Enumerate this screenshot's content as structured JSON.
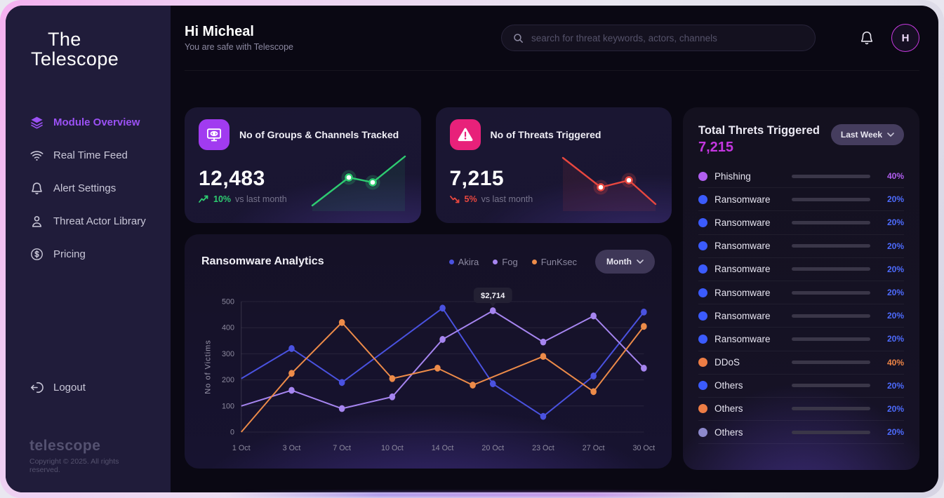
{
  "colors": {
    "accent_purple": "#9b51f5",
    "magenta_total": "#c436e0",
    "green": "#2ecc71",
    "red": "#e8473f",
    "bar_track": "#3a3648"
  },
  "sidebar": {
    "logo_line1": "The",
    "logo_line2": "Telescope",
    "items": [
      {
        "label": "Module Overview",
        "icon": "layers",
        "active": true
      },
      {
        "label": "Real Time Feed",
        "icon": "wifi",
        "active": false
      },
      {
        "label": "Alert Settings",
        "icon": "bell",
        "active": false
      },
      {
        "label": "Threat Actor Library",
        "icon": "user",
        "active": false
      },
      {
        "label": "Pricing",
        "icon": "dollar",
        "active": false
      }
    ],
    "logout_label": "Logout",
    "footer_brand": "telescope",
    "footer_copyright": "Copyright © 2025. All rights reserved."
  },
  "header": {
    "greeting": "Hi Micheal",
    "subtitle": "You are safe with Telescope",
    "search_placeholder": "search for threat keywords, actors, channels",
    "avatar_initial": "H"
  },
  "stat_cards": [
    {
      "title": "No of Groups & Channels Tracked",
      "value": "12,483",
      "delta": "10%",
      "delta_direction": "up",
      "delta_suffix": "vs last month",
      "icon": "monitor-eye",
      "icon_bg": "#a13bf0",
      "trend_color": "#2ecc71",
      "sparkline": {
        "points": [
          [
            4,
            76
          ],
          [
            56,
            36
          ],
          [
            90,
            43
          ],
          [
            136,
            6
          ]
        ],
        "dots": [
          [
            56,
            36
          ],
          [
            90,
            43
          ]
        ]
      }
    },
    {
      "title": "No of Threats Triggered",
      "value": "7,215",
      "delta": "5%",
      "delta_direction": "down",
      "delta_suffix": "vs last month",
      "icon": "alert-triangle",
      "icon_bg": "#e8217a",
      "trend_color": "#e8473f",
      "sparkline": {
        "points": [
          [
            4,
            8
          ],
          [
            58,
            50
          ],
          [
            98,
            40
          ],
          [
            136,
            74
          ]
        ],
        "dots": [
          [
            58,
            50
          ],
          [
            98,
            40
          ]
        ]
      }
    }
  ],
  "threat_panel": {
    "title": "Total Threts Triggered",
    "total": "7,215",
    "filter_label": "Last Week",
    "rows": [
      {
        "label": "Phishing",
        "color": "#b15ef0",
        "pct": "40%",
        "pct_color": "#b15ef0",
        "fill": 35
      },
      {
        "label": "Ransomware",
        "color": "#3b5bfd",
        "pct": "20%",
        "pct_color": "#4d6bfd",
        "fill": 18
      },
      {
        "label": "Ransomware",
        "color": "#3b5bfd",
        "pct": "20%",
        "pct_color": "#4d6bfd",
        "fill": 33
      },
      {
        "label": "Ransomware",
        "color": "#3b5bfd",
        "pct": "20%",
        "pct_color": "#4d6bfd",
        "fill": 33
      },
      {
        "label": "Ransomware",
        "color": "#3b5bfd",
        "pct": "20%",
        "pct_color": "#4d6bfd",
        "fill": 33
      },
      {
        "label": "Ransomware",
        "color": "#3b5bfd",
        "pct": "20%",
        "pct_color": "#4d6bfd",
        "fill": 6
      },
      {
        "label": "Ransomware",
        "color": "#3b5bfd",
        "pct": "20%",
        "pct_color": "#4d6bfd",
        "fill": 5
      },
      {
        "label": "Ransomware",
        "color": "#3b5bfd",
        "pct": "20%",
        "pct_color": "#4d6bfd",
        "fill": 12
      },
      {
        "label": "DDoS",
        "color": "#ed7d45",
        "pct": "40%",
        "pct_color": "#ed8445",
        "fill": 10
      },
      {
        "label": "Others",
        "color": "#3b5bfd",
        "pct": "20%",
        "pct_color": "#4d6bfd",
        "fill": 18
      },
      {
        "label": "Others",
        "color": "#ed7d45",
        "pct": "20%",
        "pct_color": "#4d6bfd",
        "fill": 18
      },
      {
        "label": "Others",
        "color": "#8d89cc",
        "pct": "20%",
        "pct_color": "#4d6bfd",
        "fill": 18
      }
    ]
  },
  "chart_data": {
    "type": "line",
    "title": "Ransomware Analytics",
    "period_label": "Month",
    "ylabel": "No of Victims",
    "ylim": [
      0,
      500
    ],
    "yticks": [
      0,
      100,
      200,
      300,
      400,
      500
    ],
    "grid": true,
    "legend_position": "top-right",
    "categories": [
      "1 Oct",
      "3 Oct",
      "7 Oct",
      "10 Oct",
      "14 Oct",
      "20 Oct",
      "23 Oct",
      "27 Oct",
      "30 Oct"
    ],
    "series": [
      {
        "name": "Akira",
        "color": "#4a52e0",
        "points": [
          [
            0,
            205
          ],
          [
            1,
            320
          ],
          [
            2,
            190
          ],
          [
            4,
            475
          ],
          [
            5,
            185
          ],
          [
            6,
            60
          ],
          [
            7,
            215
          ],
          [
            8,
            460
          ]
        ]
      },
      {
        "name": "Fog",
        "color": "#a685f0",
        "points": [
          [
            0,
            100
          ],
          [
            1,
            160
          ],
          [
            2,
            90
          ],
          [
            3,
            135
          ],
          [
            4,
            355
          ],
          [
            5,
            465
          ],
          [
            6,
            345
          ],
          [
            7,
            445
          ],
          [
            8,
            245
          ]
        ]
      },
      {
        "name": "FunKsec",
        "color": "#ed8b49",
        "points": [
          [
            0,
            0
          ],
          [
            1,
            225
          ],
          [
            2,
            420
          ],
          [
            3,
            205
          ],
          [
            3.9,
            245
          ],
          [
            4.6,
            180
          ],
          [
            6,
            290
          ],
          [
            7,
            155
          ],
          [
            8,
            405
          ]
        ]
      }
    ],
    "tooltip": {
      "text": "$2,714",
      "series": "Fog",
      "point_index": 5
    }
  }
}
